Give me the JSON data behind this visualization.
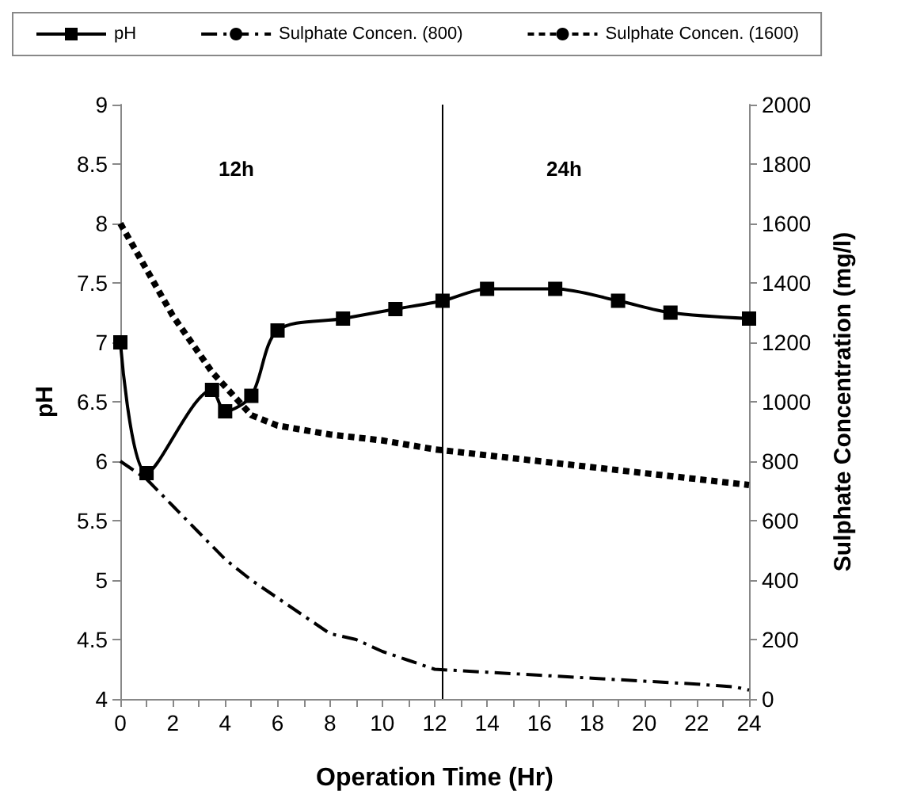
{
  "chart_data": {
    "type": "line",
    "xlabel": "Operation Time (Hr)",
    "ylabel": "pH",
    "y2label": "Sulphate Concentration (mg/l)",
    "xlim": [
      0,
      24
    ],
    "xticks": [
      0,
      {
        "value": 1,
        "label": null
      },
      2,
      {
        "value": 3,
        "label": null
      },
      4,
      {
        "value": 5,
        "label": null
      },
      6,
      {
        "value": 7,
        "label": null
      },
      8,
      {
        "value": 9,
        "label": null
      },
      10,
      {
        "value": 11,
        "label": null
      },
      12,
      {
        "value": 13,
        "label": null
      },
      14,
      {
        "value": 15,
        "label": null
      },
      16,
      {
        "value": 17,
        "label": null
      },
      18,
      {
        "value": 19,
        "label": null
      },
      20,
      {
        "value": 21,
        "label": null
      },
      22,
      {
        "value": 23,
        "label": null
      },
      24
    ],
    "ylim": [
      4,
      9
    ],
    "yticks": [
      4,
      4.5,
      5,
      5.5,
      6,
      6.5,
      7,
      7.5,
      8,
      8.5,
      9
    ],
    "y2lim": [
      0,
      2000
    ],
    "y2ticks": [
      0,
      200,
      400,
      600,
      800,
      1000,
      1200,
      1400,
      1600,
      1800,
      2000
    ],
    "legend": "top",
    "grid": false,
    "ref_lines": [
      {
        "axis": "x",
        "value": 12.3,
        "color": "#000000"
      }
    ],
    "annotations": [
      "12h",
      "24h"
    ],
    "series": [
      {
        "name": "pH",
        "color": "#000000",
        "line_style": "solid",
        "marker": "square",
        "x": [
          0,
          1,
          3.5,
          4,
          5,
          6,
          8.5,
          10.5,
          12.3,
          14,
          16.6,
          19,
          21,
          24
        ],
        "values": [
          7.0,
          5.9,
          6.6,
          6.42,
          6.55,
          7.1,
          7.2,
          7.28,
          7.35,
          7.45,
          7.45,
          7.35,
          7.25,
          7.2
        ]
      },
      {
        "name": "Sulphate Concen. (800)",
        "color": "#000000",
        "line_style": "dashdot",
        "marker": "none",
        "axis": "y2",
        "x": [
          0,
          1,
          2,
          3,
          4,
          5,
          6,
          7,
          8,
          9,
          10,
          11,
          12,
          14,
          16,
          18,
          20,
          22,
          23.5,
          24
        ],
        "values": [
          800,
          740,
          650,
          560,
          470,
          400,
          340,
          280,
          220,
          200,
          160,
          130,
          100,
          90,
          80,
          70,
          60,
          50,
          40,
          30
        ]
      },
      {
        "name": "Sulphate Concen. (1600)",
        "color": "#000000",
        "line_style": "dashed",
        "marker": "none",
        "axis": "y2",
        "x": [
          0,
          2,
          3.5,
          5,
          6,
          8,
          10,
          12,
          14,
          16,
          18,
          20,
          22,
          24
        ],
        "values": [
          1600,
          1290,
          1100,
          955,
          920,
          890,
          870,
          840,
          820,
          800,
          780,
          760,
          740,
          720
        ]
      }
    ]
  }
}
